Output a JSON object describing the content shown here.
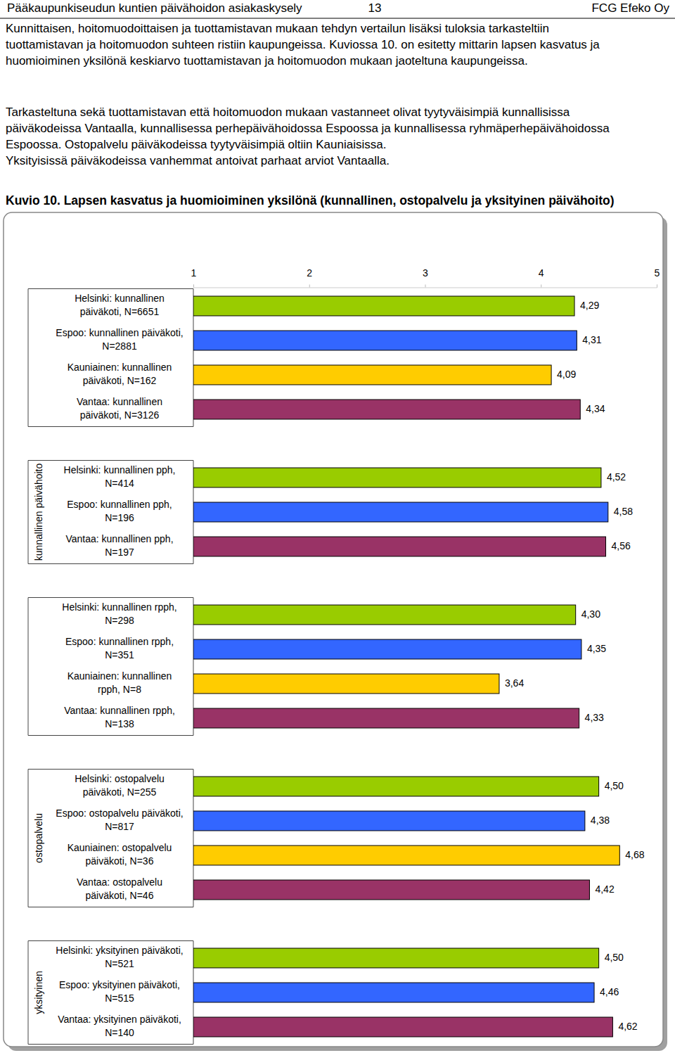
{
  "page": {
    "header": {
      "left": "Pääkaupunkiseudun kuntien päivähoidon asiakaskysely",
      "page_number": "13",
      "right": "FCG Efeko Oy"
    },
    "paragraphs": [
      [
        "Kunnittaisen, hoitomuodoittaisen ja tuottamistavan mukaan tehdyn vertailun lisäksi tuloksia tarkasteltiin",
        "tuottamistavan ja hoitomuodon suhteen ristiin kaupungeissa. Kuviossa 10. on esitetty mittarin lapsen kasvatus ja",
        "huomioiminen yksilönä keskiarvo tuottamistavan ja hoitomuodon mukaan jaoteltuna kaupungeissa."
      ],
      [
        "Tarkasteltuna sekä tuottamistavan että hoitomuodon mukaan vastanneet olivat tyytyväisimpiä kunnallisissa",
        "päiväkodeissa Vantaalla, kunnallisessa perhepäivähoidossa Espoossa ja kunnallisessa ryhmäperhepäivähoidossa",
        "Espoossa. Ostopalvelu päiväkodeissa tyytyväisimpiä oltiin Kauniaisissa.",
        "Yksityisissä päiväkodeissa vanhemmat antoivat parhaat arviot Vantaalla."
      ]
    ],
    "caption": "Kuvio 10. Lapsen kasvatus ja huomioiminen yksilönä (kunnallinen, ostopalvelu ja yksityinen päivähoito)"
  },
  "chart_data": [
    {
      "type": "bar",
      "orientation": "horizontal",
      "data_labels": true,
      "tick_labels": "x",
      "xlim": [
        1,
        5
      ],
      "xticks": [
        1,
        2,
        3,
        4,
        5
      ],
      "categories": [
        "Helsinki: kunnallinen\npäiväkoti, N=6651",
        "Espoo: kunnallinen päiväkoti,\nN=2881",
        "Kauniainen: kunnallinen\npäiväkoti, N=162",
        "Vantaa: kunnallinen\npäiväkoti, N=3126"
      ],
      "values": [
        4.29,
        4.31,
        4.09,
        4.34
      ],
      "value_labels": [
        "4,29",
        "4,31",
        "4,09",
        "4,34"
      ],
      "colors": [
        "#99cc00",
        "#3366ff",
        "#ffcc00",
        "#993366"
      ]
    },
    {
      "type": "bar",
      "title": "kunnallinen päivähoito",
      "orientation": "horizontal",
      "data_labels": true,
      "tick_labels": false,
      "xlim": [
        1,
        5
      ],
      "categories": [
        "Helsinki: kunnallinen pph,\nN=414",
        "Espoo: kunnallinen pph,\nN=196",
        "Vantaa: kunnallinen pph,\nN=197"
      ],
      "values": [
        4.52,
        4.58,
        4.56
      ],
      "value_labels": [
        "4,52",
        "4,58",
        "4,56"
      ],
      "colors": [
        "#99cc00",
        "#3366ff",
        "#993366"
      ]
    },
    {
      "type": "bar",
      "orientation": "horizontal",
      "data_labels": true,
      "tick_labels": false,
      "xlim": [
        1,
        5
      ],
      "categories": [
        "Helsinki: kunnallinen rpph,\nN=298",
        "Espoo: kunnallinen rpph,\nN=351",
        "Kauniainen: kunnallinen\nrpph, N=8",
        "Vantaa: kunnallinen rpph,\nN=138"
      ],
      "values": [
        4.3,
        4.35,
        3.64,
        4.33
      ],
      "value_labels": [
        "4,30",
        "4,35",
        "3,64",
        "4,33"
      ],
      "colors": [
        "#99cc00",
        "#3366ff",
        "#ffcc00",
        "#993366"
      ]
    },
    {
      "type": "bar",
      "title": "ostopalvelu",
      "orientation": "horizontal",
      "data_labels": true,
      "tick_labels": false,
      "xlim": [
        1,
        5
      ],
      "categories": [
        "Helsinki: ostopalvelu\npäiväkoti, N=255",
        "Espoo: ostopalvelu päiväkoti,\nN=817",
        "Kauniainen: ostopalvelu\npäiväkoti, N=36",
        "Vantaa: ostopalvelu\npäiväkoti, N=46"
      ],
      "values": [
        4.5,
        4.38,
        4.68,
        4.42
      ],
      "value_labels": [
        "4,50",
        "4,38",
        "4,68",
        "4,42"
      ],
      "colors": [
        "#99cc00",
        "#3366ff",
        "#ffcc00",
        "#993366"
      ]
    },
    {
      "type": "bar",
      "title": "yksityinen",
      "orientation": "horizontal",
      "data_labels": true,
      "tick_labels": false,
      "xlim": [
        1,
        5
      ],
      "categories": [
        "Helsinki: yksityinen päiväkoti,\nN=521",
        "Espoo: yksityinen päiväkoti,\nN=515",
        "Vantaa: yksityinen päiväkoti,\nN=140"
      ],
      "values": [
        4.5,
        4.46,
        4.62
      ],
      "value_labels": [
        "4,50",
        "4,46",
        "4,62"
      ],
      "colors": [
        "#99cc00",
        "#3366ff",
        "#993366"
      ]
    }
  ]
}
